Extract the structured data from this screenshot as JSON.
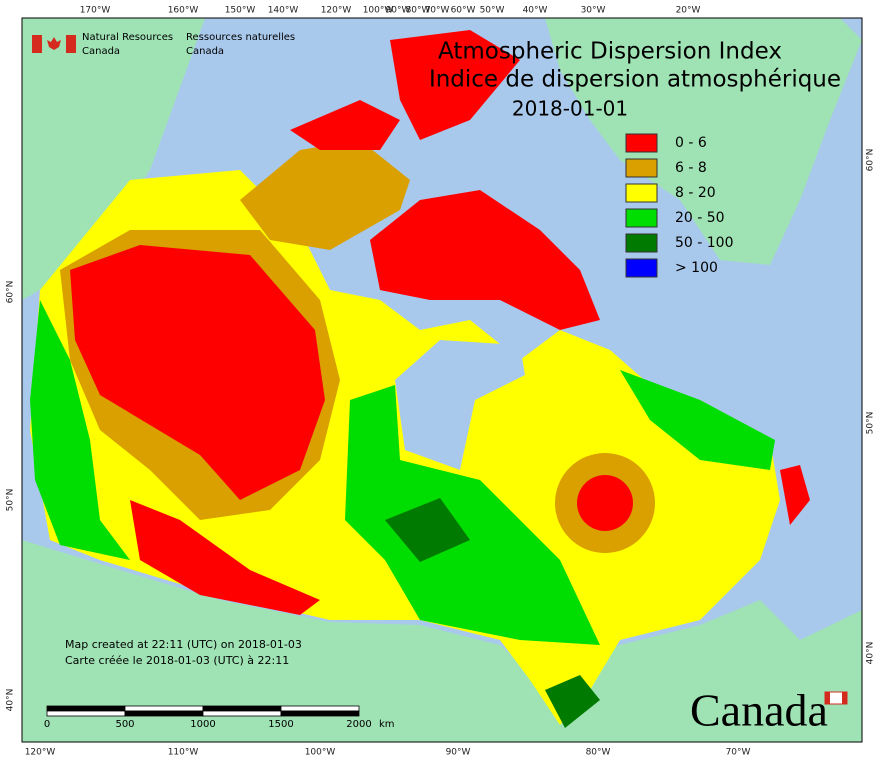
{
  "header": {
    "org_en": [
      "Natural Resources",
      "Canada"
    ],
    "org_fr": [
      "Ressources naturelles",
      "Canada"
    ]
  },
  "title": {
    "lines": [
      "Atmospheric Dispersion Index",
      "Indice de dispersion atmosphérique"
    ],
    "date": "2018-01-01"
  },
  "legend": {
    "items": [
      {
        "label": "0 - 6",
        "color": "#ff0000"
      },
      {
        "label": "6 - 8",
        "color": "#d9a000"
      },
      {
        "label": "8 - 20",
        "color": "#ffff00"
      },
      {
        "label": "20 - 50",
        "color": "#00dd00"
      },
      {
        "label": "50 - 100",
        "color": "#007a00"
      },
      {
        "label": "> 100",
        "color": "#0000ff"
      }
    ]
  },
  "graticule": {
    "top": [
      "170°W",
      "160°W",
      "150°W",
      "140°W",
      "120°W",
      "100°W",
      "90°W",
      "80°W",
      "70°W",
      "60°W",
      "50°W",
      "40°W",
      "30°W",
      "20°W"
    ],
    "bottom": [
      "120°W",
      "110°W",
      "100°W",
      "90°W",
      "80°W",
      "70°W"
    ],
    "left": [
      "60°N",
      "50°N",
      "40°N"
    ],
    "right": [
      "60°N",
      "50°N",
      "40°N"
    ]
  },
  "scale_bar": {
    "labels": [
      "0",
      "500",
      "1000",
      "1500",
      "2000"
    ],
    "unit": "km"
  },
  "credits": [
    "Map created at 22:11 (UTC) on 2018-01-03",
    "Carte créée le 2018-01-03 (UTC) à 22:11"
  ],
  "wordmark": "Canada"
}
